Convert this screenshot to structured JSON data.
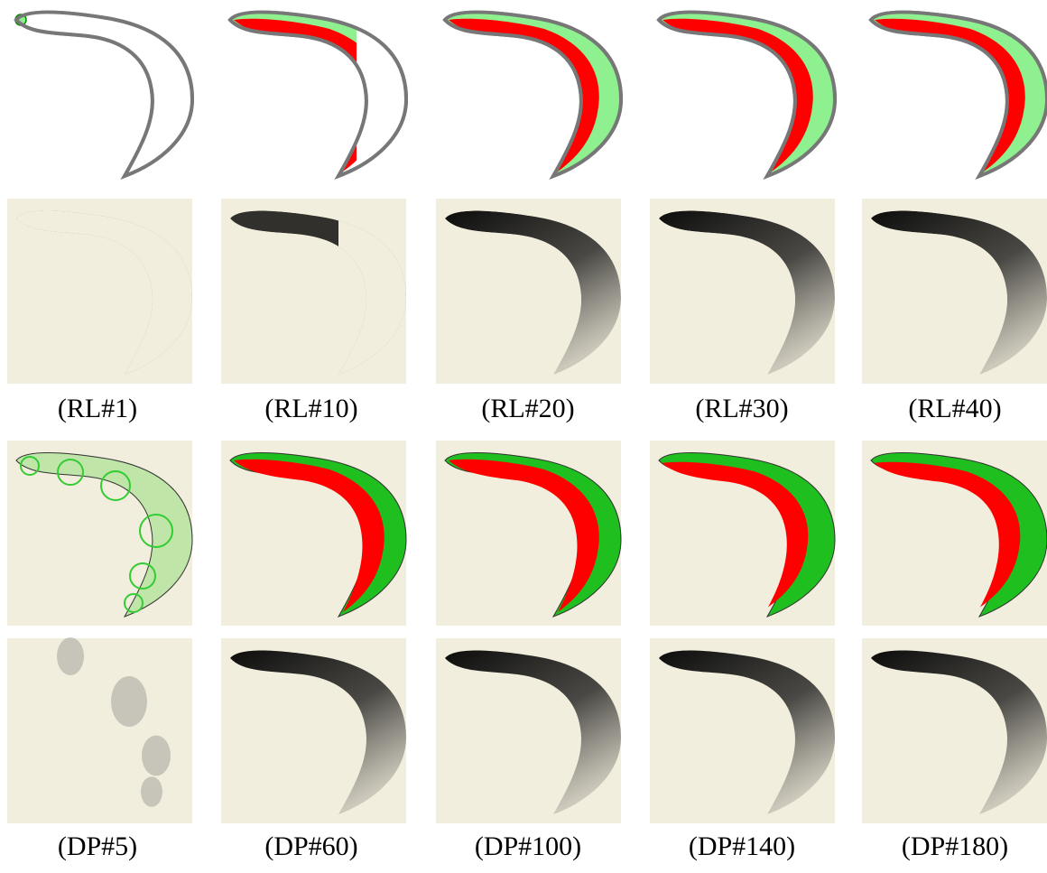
{
  "groups": [
    {
      "captions": [
        "(RL#1)",
        "(RL#10)",
        "(RL#20)",
        "(RL#30)",
        "(RL#40)"
      ]
    },
    {
      "captions": [
        "(DP#5)",
        "(DP#60)",
        "(DP#100)",
        "(DP#140)",
        "(DP#180)"
      ]
    }
  ]
}
